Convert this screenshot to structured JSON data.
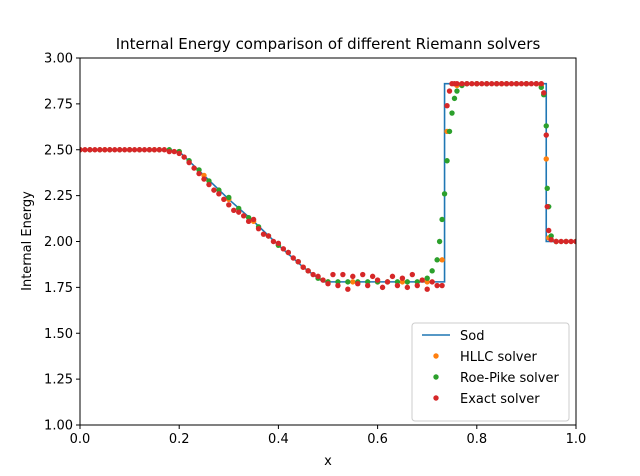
{
  "chart_data": {
    "type": "line",
    "title": "Internal Energy comparison of different Riemann solvers",
    "xlabel": "x",
    "ylabel": "Internal Energy",
    "xlim": [
      0,
      1
    ],
    "ylim": [
      1.0,
      3.0
    ],
    "xticks": [
      "0.0",
      "0.2",
      "0.4",
      "0.6",
      "0.8",
      "1.0"
    ],
    "yticks": [
      "1.00",
      "1.25",
      "1.50",
      "1.75",
      "2.00",
      "2.25",
      "2.50",
      "2.75",
      "3.00"
    ],
    "legend_position": "lower right",
    "grid": false,
    "series": [
      {
        "name": "Sod",
        "style": "line",
        "color": "#1f77b4",
        "x": [
          0.0,
          0.18,
          0.2,
          0.25,
          0.3,
          0.35,
          0.4,
          0.45,
          0.49,
          0.5,
          0.735,
          0.735,
          0.74,
          0.94,
          0.94,
          0.944,
          1.0
        ],
        "y": [
          2.5,
          2.5,
          2.49,
          2.36,
          2.23,
          2.11,
          1.98,
          1.86,
          1.78,
          1.78,
          1.78,
          2.86,
          2.86,
          2.86,
          2.0,
          2.0,
          2.0
        ]
      },
      {
        "name": "HLLC solver",
        "style": "dots",
        "color": "#ff7f0e",
        "x": [
          0.0,
          0.05,
          0.1,
          0.15,
          0.2,
          0.25,
          0.3,
          0.35,
          0.4,
          0.45,
          0.5,
          0.55,
          0.6,
          0.65,
          0.7,
          0.73,
          0.74,
          0.76,
          0.8,
          0.85,
          0.9,
          0.93,
          0.94,
          0.945,
          0.96,
          1.0
        ],
        "y": [
          2.5,
          2.5,
          2.5,
          2.5,
          2.49,
          2.36,
          2.23,
          2.11,
          1.98,
          1.86,
          1.78,
          1.78,
          1.78,
          1.78,
          1.78,
          1.9,
          2.6,
          2.85,
          2.86,
          2.86,
          2.86,
          2.85,
          2.45,
          2.02,
          2.0,
          2.0
        ]
      },
      {
        "name": "Roe-Pike solver",
        "style": "dots",
        "color": "#2ca02c",
        "x": [
          0.0,
          0.02,
          0.04,
          0.06,
          0.08,
          0.1,
          0.12,
          0.14,
          0.16,
          0.18,
          0.2,
          0.22,
          0.24,
          0.26,
          0.28,
          0.3,
          0.32,
          0.34,
          0.36,
          0.38,
          0.4,
          0.42,
          0.44,
          0.46,
          0.48,
          0.5,
          0.52,
          0.54,
          0.56,
          0.58,
          0.6,
          0.62,
          0.64,
          0.66,
          0.68,
          0.7,
          0.71,
          0.72,
          0.725,
          0.73,
          0.735,
          0.74,
          0.745,
          0.75,
          0.755,
          0.76,
          0.77,
          0.78,
          0.8,
          0.82,
          0.84,
          0.86,
          0.88,
          0.9,
          0.92,
          0.93,
          0.935,
          0.94,
          0.942,
          0.945,
          0.95,
          0.96,
          0.98,
          1.0
        ],
        "y": [
          2.5,
          2.5,
          2.5,
          2.5,
          2.5,
          2.5,
          2.5,
          2.5,
          2.5,
          2.5,
          2.49,
          2.44,
          2.39,
          2.33,
          2.28,
          2.24,
          2.18,
          2.13,
          2.08,
          2.03,
          1.98,
          1.94,
          1.89,
          1.84,
          1.8,
          1.78,
          1.78,
          1.78,
          1.78,
          1.78,
          1.78,
          1.78,
          1.78,
          1.78,
          1.78,
          1.8,
          1.84,
          1.9,
          2.0,
          2.12,
          2.26,
          2.44,
          2.6,
          2.7,
          2.78,
          2.82,
          2.85,
          2.86,
          2.86,
          2.86,
          2.86,
          2.86,
          2.86,
          2.86,
          2.86,
          2.84,
          2.8,
          2.63,
          2.29,
          2.19,
          2.03,
          2.0,
          2.0,
          2.0
        ]
      },
      {
        "name": "Exact solver",
        "style": "dots",
        "color": "#d62728",
        "x": [
          0.0,
          0.01,
          0.02,
          0.03,
          0.04,
          0.05,
          0.06,
          0.07,
          0.08,
          0.09,
          0.1,
          0.11,
          0.12,
          0.13,
          0.14,
          0.15,
          0.16,
          0.17,
          0.18,
          0.19,
          0.2,
          0.21,
          0.22,
          0.23,
          0.24,
          0.25,
          0.26,
          0.27,
          0.28,
          0.29,
          0.3,
          0.31,
          0.32,
          0.33,
          0.34,
          0.35,
          0.36,
          0.37,
          0.38,
          0.39,
          0.4,
          0.41,
          0.42,
          0.43,
          0.44,
          0.45,
          0.46,
          0.47,
          0.48,
          0.49,
          0.5,
          0.51,
          0.52,
          0.53,
          0.54,
          0.55,
          0.56,
          0.57,
          0.58,
          0.59,
          0.6,
          0.61,
          0.62,
          0.63,
          0.64,
          0.65,
          0.66,
          0.67,
          0.68,
          0.69,
          0.7,
          0.71,
          0.72,
          0.73,
          0.74,
          0.745,
          0.75,
          0.755,
          0.76,
          0.77,
          0.78,
          0.79,
          0.8,
          0.81,
          0.82,
          0.83,
          0.84,
          0.85,
          0.86,
          0.87,
          0.88,
          0.89,
          0.9,
          0.91,
          0.92,
          0.93,
          0.935,
          0.94,
          0.942,
          0.945,
          0.95,
          0.96,
          0.97,
          0.98,
          0.99,
          1.0
        ],
        "y": [
          2.5,
          2.5,
          2.5,
          2.5,
          2.5,
          2.5,
          2.5,
          2.5,
          2.5,
          2.5,
          2.5,
          2.5,
          2.5,
          2.5,
          2.5,
          2.5,
          2.5,
          2.5,
          2.49,
          2.49,
          2.48,
          2.46,
          2.43,
          2.4,
          2.37,
          2.34,
          2.31,
          2.28,
          2.26,
          2.23,
          2.2,
          2.17,
          2.16,
          2.14,
          2.11,
          2.12,
          2.07,
          2.04,
          2.03,
          2.0,
          1.99,
          1.96,
          1.94,
          1.91,
          1.89,
          1.86,
          1.84,
          1.82,
          1.81,
          1.79,
          1.77,
          1.82,
          1.76,
          1.82,
          1.74,
          1.81,
          1.77,
          1.82,
          1.76,
          1.81,
          1.79,
          1.75,
          1.78,
          1.81,
          1.76,
          1.8,
          1.75,
          1.82,
          1.76,
          1.79,
          1.74,
          1.78,
          1.76,
          1.76,
          2.74,
          2.82,
          2.86,
          2.86,
          2.86,
          2.86,
          2.86,
          2.86,
          2.86,
          2.86,
          2.86,
          2.86,
          2.86,
          2.86,
          2.86,
          2.86,
          2.86,
          2.86,
          2.86,
          2.86,
          2.86,
          2.86,
          2.81,
          2.58,
          2.19,
          2.06,
          2.01,
          2.0,
          2.0,
          2.0,
          2.0,
          2.0
        ]
      }
    ]
  }
}
